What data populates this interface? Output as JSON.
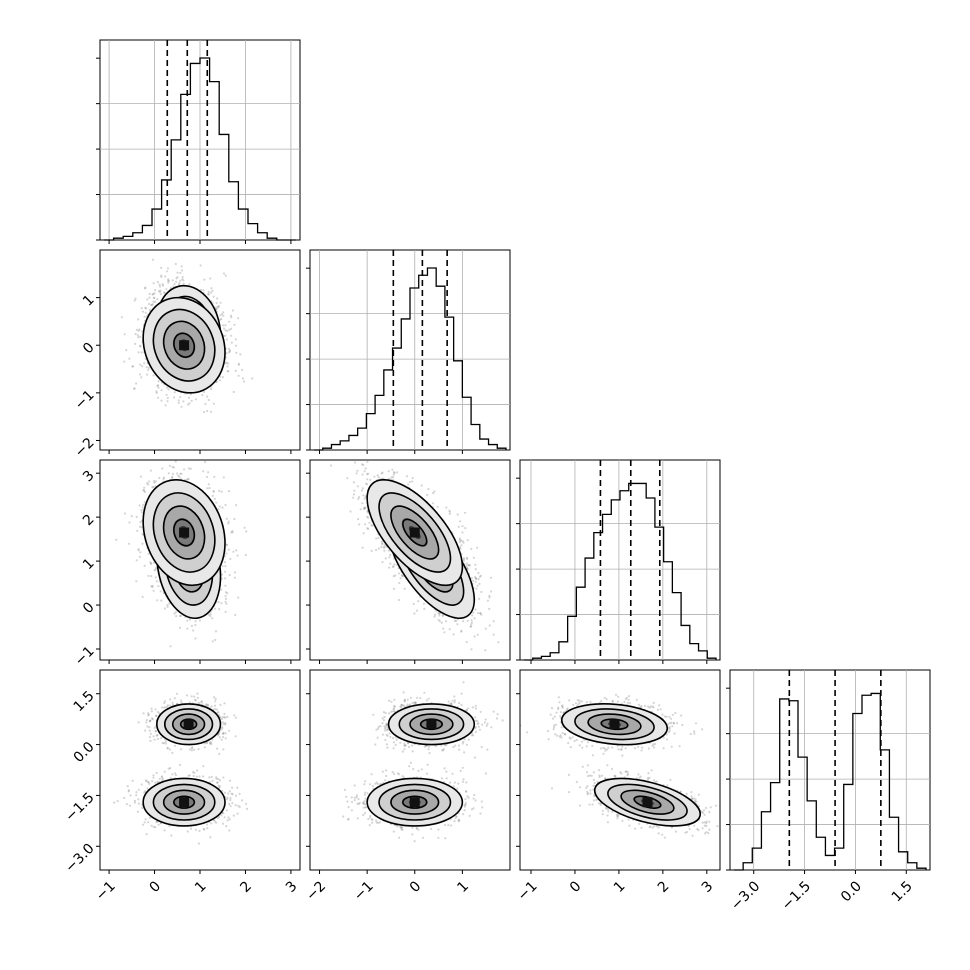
{
  "chart_data": {
    "type": "corner",
    "grid": true,
    "colors": {
      "hist": "#000000",
      "quantile": "#000000",
      "grid": "#b0b0b0",
      "density_min": "#ffffff",
      "density_max": "#1a1a1a"
    },
    "parameters": [
      {
        "index": 0,
        "range": [
          -1.2,
          3.2
        ],
        "ticks": [
          -1,
          0,
          1,
          2,
          3
        ],
        "tick_labels": [
          "−1",
          "0",
          "1",
          "2",
          "3"
        ],
        "quantiles": [
          0.28,
          0.72,
          1.16
        ]
      },
      {
        "index": 1,
        "range": [
          -2.2,
          2.0
        ],
        "ticks": [
          -2,
          -1,
          0,
          1
        ],
        "tick_labels": [
          "−2",
          "−1",
          "0",
          "1"
        ],
        "quantiles": [
          -0.45,
          0.16,
          0.68
        ]
      },
      {
        "index": 2,
        "range": [
          -1.25,
          3.3
        ],
        "ticks": [
          -1,
          0,
          1,
          2,
          3
        ],
        "tick_labels": [
          "−1",
          "0",
          "1",
          "2",
          "3"
        ],
        "quantiles": [
          0.58,
          1.27,
          1.93
        ]
      },
      {
        "index": 3,
        "range": [
          -3.7,
          2.2
        ],
        "ticks": [
          -3.0,
          -1.5,
          0.0,
          1.5
        ],
        "tick_labels": [
          "−3.0",
          "−1.5",
          "0.0",
          "1.5"
        ],
        "quantiles": [
          -1.95,
          -0.6,
          0.75
        ]
      }
    ],
    "histograms": [
      [
        0.0,
        0.01,
        0.02,
        0.04,
        0.08,
        0.17,
        0.33,
        0.55,
        0.8,
        0.97,
        1.0,
        0.87,
        0.58,
        0.32,
        0.17,
        0.09,
        0.04,
        0.01,
        0.0,
        0.0
      ],
      [
        0.0,
        0.01,
        0.03,
        0.05,
        0.08,
        0.12,
        0.2,
        0.3,
        0.44,
        0.56,
        0.72,
        0.89,
        0.96,
        1.0,
        0.9,
        0.73,
        0.49,
        0.29,
        0.14,
        0.06,
        0.03,
        0.01
      ],
      [
        0.0,
        0.01,
        0.02,
        0.04,
        0.1,
        0.24,
        0.4,
        0.56,
        0.7,
        0.8,
        0.88,
        0.93,
        0.97,
        0.97,
        0.89,
        0.73,
        0.54,
        0.37,
        0.19,
        0.09,
        0.05,
        0.01
      ],
      [
        0.0,
        0.04,
        0.12,
        0.32,
        0.48,
        0.94,
        0.93,
        0.62,
        0.38,
        0.18,
        0.08,
        0.12,
        0.47,
        0.86,
        0.96,
        0.97,
        0.66,
        0.29,
        0.1,
        0.04,
        0.01
      ]
    ],
    "components": [
      {
        "w": 0.5,
        "mean": [
          0.75,
          0.35,
          0.9,
          0.6
        ],
        "sd": [
          0.35,
          0.45,
          0.6,
          0.3
        ]
      },
      {
        "w": 0.5,
        "mean": [
          0.65,
          0.0,
          1.65,
          -1.7
        ],
        "sd": [
          0.45,
          0.5,
          0.6,
          0.35
        ]
      }
    ],
    "correlations": {
      "1-0": -0.15,
      "2-0": -0.2,
      "2-1": -0.65,
      "3-0": 0.0,
      "3-1": 0.0,
      "3-2": -0.5
    },
    "contour_levels_sigma": [
      0.5,
      1.0,
      1.5,
      2.0
    ]
  }
}
